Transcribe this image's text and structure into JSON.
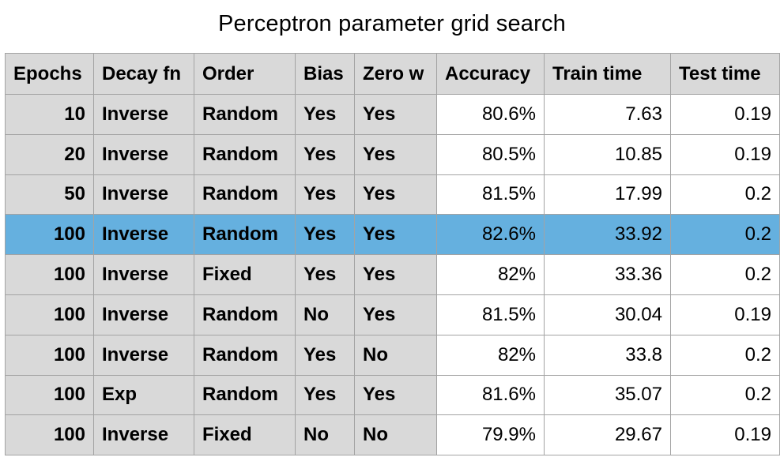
{
  "chart_data": {
    "type": "table",
    "title": "Perceptron parameter grid search",
    "columns": [
      "Epochs",
      "Decay fn",
      "Order",
      "Bias",
      "Zero w",
      "Accuracy",
      "Train time",
      "Test time"
    ],
    "rows": [
      [
        "10",
        "Inverse",
        "Random",
        "Yes",
        "Yes",
        "80.6%",
        "7.63",
        "0.19"
      ],
      [
        "20",
        "Inverse",
        "Random",
        "Yes",
        "Yes",
        "80.5%",
        "10.85",
        "0.19"
      ],
      [
        "50",
        "Inverse",
        "Random",
        "Yes",
        "Yes",
        "81.5%",
        "17.99",
        "0.2"
      ],
      [
        "100",
        "Inverse",
        "Random",
        "Yes",
        "Yes",
        "82.6%",
        "33.92",
        "0.2"
      ],
      [
        "100",
        "Inverse",
        "Fixed",
        "Yes",
        "Yes",
        "82%",
        "33.36",
        "0.2"
      ],
      [
        "100",
        "Inverse",
        "Random",
        "No",
        "Yes",
        "81.5%",
        "30.04",
        "0.19"
      ],
      [
        "100",
        "Inverse",
        "Random",
        "Yes",
        "No",
        "82%",
        "33.8",
        "0.2"
      ],
      [
        "100",
        "Exp",
        "Random",
        "Yes",
        "Yes",
        "81.6%",
        "35.07",
        "0.2"
      ],
      [
        "100",
        "Inverse",
        "Fixed",
        "No",
        "No",
        "79.9%",
        "29.67",
        "0.19"
      ]
    ],
    "highlighted_row": 3,
    "colors": {
      "header_bg": "#d9d9d9",
      "param_bg": "#d9d9d9",
      "metric_bg": "#ffffff",
      "highlight_bg": "#65b0df",
      "border": "#a3a3a3"
    }
  }
}
